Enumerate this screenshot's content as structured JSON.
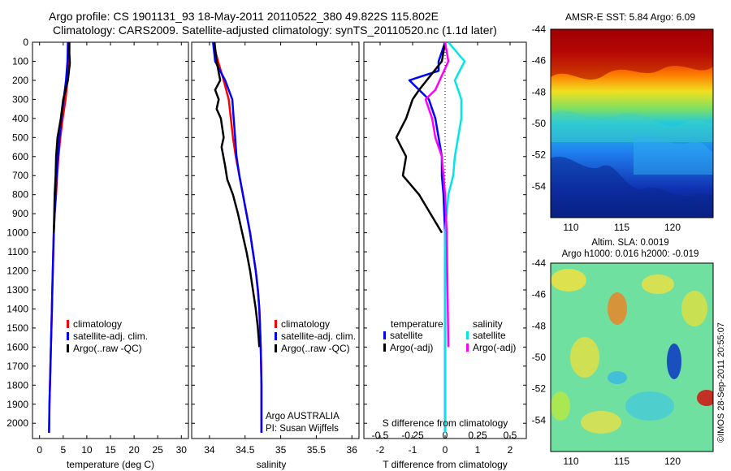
{
  "header": {
    "line1": "Argo profile: CS 1901131_93 18-May-2011 20110522_380 49.822S 115.802E",
    "line2": "Climatology: CARS2009. Satellite-adjusted climatology: synTS_20110520.nc (1.1d later)"
  },
  "colors": {
    "climatology": "#ff0000",
    "satellite": "#0000ff",
    "argo": "#000000",
    "sat_salinity": "#00e5e5",
    "argo_salinity": "#ff00ff"
  },
  "chart_data": [
    {
      "type": "line",
      "panel": "temperature",
      "xlabel": "temperature (deg C)",
      "ylabel": "",
      "xlim": [
        -1.5,
        31.5
      ],
      "ylim": [
        2080,
        0
      ],
      "xticks": [
        "0",
        "5",
        "10",
        "15",
        "20",
        "25",
        "30"
      ],
      "yticks": [
        "0",
        "100",
        "200",
        "300",
        "400",
        "500",
        "600",
        "700",
        "800",
        "900",
        "1000",
        "1100",
        "1200",
        "1300",
        "1400",
        "1500",
        "1600",
        "1700",
        "1800",
        "1900",
        "2000"
      ],
      "legend": [
        "climatology",
        "satellite-adj. clim.",
        "Argo(..raw -QC)"
      ],
      "series": [
        {
          "name": "climatology",
          "x": [
            6.2,
            6.1,
            5.9,
            5.5,
            4.9,
            4.4,
            4.0,
            3.7,
            3.5,
            3.2,
            3.0,
            2.9,
            2.8,
            2.7,
            2.6,
            2.5,
            2.4,
            2.3,
            2.2,
            2.1,
            2.0
          ],
          "y": [
            0,
            100,
            200,
            300,
            400,
            500,
            600,
            700,
            800,
            900,
            1000,
            1100,
            1200,
            1300,
            1400,
            1500,
            1600,
            1700,
            1800,
            1900,
            2050
          ]
        },
        {
          "name": "satellite-adj. clim.",
          "x": [
            6.0,
            5.9,
            5.6,
            5.1,
            4.6,
            4.2,
            3.9,
            3.6,
            3.4,
            3.2,
            3.0,
            2.9,
            2.8,
            2.7,
            2.6,
            2.5,
            2.4,
            2.3,
            2.2,
            2.1,
            2.0
          ],
          "y": [
            0,
            100,
            200,
            300,
            400,
            500,
            600,
            700,
            800,
            900,
            1000,
            1100,
            1200,
            1300,
            1400,
            1500,
            1600,
            1700,
            1800,
            1900,
            2050
          ]
        },
        {
          "name": "Argo(..raw -QC)",
          "x": [
            6.3,
            6.3,
            6.4,
            6.0,
            5.0,
            4.5,
            3.8,
            3.5,
            3.4,
            3.2,
            3.1,
            3.0
          ],
          "y": [
            0,
            60,
            110,
            200,
            300,
            400,
            500,
            600,
            700,
            800,
            900,
            1000
          ]
        }
      ]
    },
    {
      "type": "line",
      "panel": "salinity",
      "xlabel": "salinity",
      "xlim": [
        33.75,
        36.1
      ],
      "ylim": [
        2080,
        0
      ],
      "xticks": [
        "34",
        "34.5",
        "35",
        "35.5",
        "36"
      ],
      "legend": [
        "climatology",
        "satellite-adj. clim.",
        "Argo(..raw -QC)"
      ],
      "annotations": [
        "Argo AUSTRALIA",
        "PI: Susan Wijffels"
      ],
      "series": [
        {
          "name": "climatology",
          "x": [
            34.05,
            34.12,
            34.2,
            34.27,
            34.3,
            34.33,
            34.37,
            34.42,
            34.47,
            34.52,
            34.57,
            34.61,
            34.65,
            34.68,
            34.7,
            34.71,
            34.72,
            34.725,
            34.73,
            34.73,
            34.73
          ],
          "y": [
            0,
            100,
            200,
            300,
            400,
            500,
            600,
            700,
            800,
            900,
            1000,
            1100,
            1200,
            1300,
            1400,
            1500,
            1600,
            1700,
            1800,
            1900,
            2050
          ]
        },
        {
          "name": "satellite-adj. clim.",
          "x": [
            34.05,
            34.08,
            34.22,
            34.32,
            34.34,
            34.36,
            34.38,
            34.42,
            34.47,
            34.52,
            34.57,
            34.61,
            34.65,
            34.68,
            34.7,
            34.71,
            34.72,
            34.725,
            34.73,
            34.73,
            34.73
          ],
          "y": [
            0,
            100,
            200,
            300,
            400,
            500,
            600,
            700,
            800,
            900,
            1000,
            1100,
            1200,
            1300,
            1400,
            1500,
            1600,
            1700,
            1800,
            1900,
            2050
          ]
        },
        {
          "name": "Argo(..raw -QC)",
          "x": [
            34.07,
            34.1,
            34.15,
            34.08,
            34.13,
            34.1,
            34.16,
            34.2,
            34.17,
            34.22,
            34.25,
            34.33,
            34.4,
            34.46,
            34.52,
            34.57,
            34.61,
            34.65,
            34.68,
            34.7
          ],
          "y": [
            0,
            100,
            200,
            250,
            300,
            350,
            400,
            500,
            550,
            650,
            720,
            800,
            900,
            1000,
            1100,
            1200,
            1300,
            1400,
            1500,
            1600
          ]
        }
      ]
    },
    {
      "type": "line",
      "panel": "difference",
      "xlabel": "T difference from climatology",
      "x2label": "S difference from climatology",
      "xlim": [
        -2.5,
        2.5
      ],
      "ylim": [
        2080,
        0
      ],
      "xticks": [
        "-2",
        "-1",
        "0",
        "1",
        "2"
      ],
      "x2ticks": [
        "-0.5",
        "-0.25",
        "0",
        "0.25",
        "0.5"
      ],
      "legend_titles": [
        "temperature",
        "salinity"
      ],
      "legend": [
        "satellite",
        "Argo(-adj)",
        "satellite",
        "Argo(-adj)"
      ],
      "series": [
        {
          "name": "temperature satellite",
          "x": [
            0,
            -0.2,
            -0.2,
            -1.1,
            -0.5,
            -0.3,
            -0.2,
            -0.1,
            -0.1,
            -0.05,
            0,
            0
          ],
          "y": [
            0,
            100,
            150,
            200,
            300,
            400,
            500,
            600,
            700,
            800,
            1000,
            2050
          ]
        },
        {
          "name": "temperature Argo(-adj)",
          "x": [
            0,
            -0.1,
            -0.8,
            -1.0,
            -1.2,
            -1.5,
            -1.2,
            -1.3,
            -0.8,
            -0.1
          ],
          "y": [
            0,
            100,
            250,
            300,
            400,
            500,
            600,
            700,
            800,
            1000
          ]
        },
        {
          "name": "salinity satellite",
          "x": [
            0.1,
            0.6,
            0.3,
            0.5,
            0.5,
            0.4,
            0.3,
            0.25,
            0.1,
            0,
            0,
            0
          ],
          "y": [
            0,
            100,
            200,
            300,
            400,
            500,
            600,
            700,
            800,
            1000,
            1500,
            2050
          ]
        },
        {
          "name": "salinity Argo(-adj)",
          "x": [
            0,
            0.1,
            -0.3,
            -0.6,
            -0.4,
            -0.3,
            -0.1,
            0,
            0.05,
            0.1
          ],
          "y": [
            0,
            100,
            250,
            300,
            400,
            500,
            600,
            800,
            1000,
            1600
          ]
        }
      ]
    },
    {
      "type": "heatmap",
      "panel": "sst-map",
      "title": "AMSR-E SST: 5.84 Argo: 6.09",
      "xlim": [
        108,
        124
      ],
      "ylim": [
        -56,
        -44
      ],
      "xticks": [
        "110",
        "115",
        "120"
      ],
      "yticks": [
        "-44",
        "-46",
        "-48",
        "-50",
        "-52",
        "-54"
      ],
      "marker": [
        115.802,
        -49.822
      ]
    },
    {
      "type": "heatmap",
      "panel": "sla-map",
      "title": "Altim. SLA: 0.0019",
      "subtitle": "Argo h1000: 0.016 h2000: -0.019",
      "xlim": [
        108,
        124
      ],
      "ylim": [
        -56,
        -44
      ],
      "xticks": [
        "110",
        "115",
        "120"
      ],
      "yticks": [
        "-44",
        "-46",
        "-48",
        "-50",
        "-52",
        "-54"
      ],
      "marker": [
        115.802,
        -49.822
      ]
    }
  ],
  "credit": "©IMOS 28-Sep-2011 20:55:07"
}
